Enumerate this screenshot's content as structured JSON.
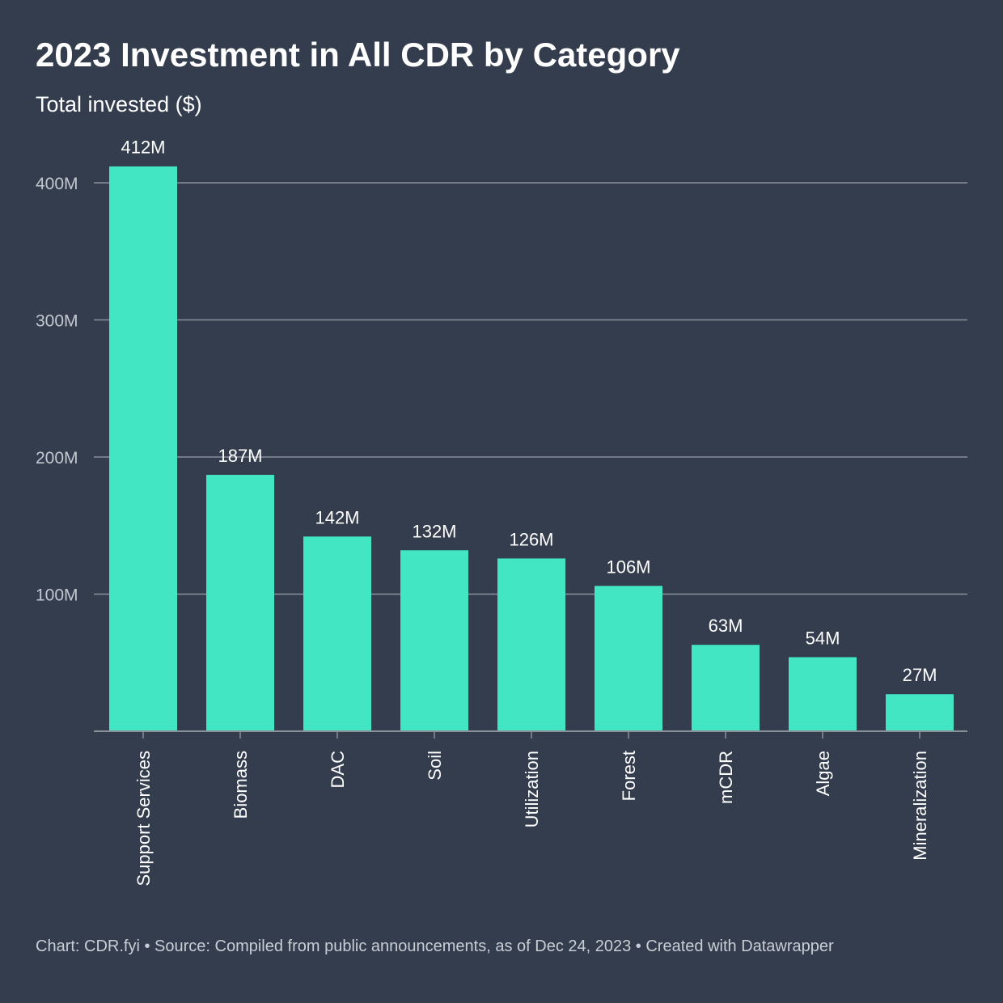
{
  "colors": {
    "background": "#333d4d",
    "bar": "#42e6c3",
    "grid": "#8a9099",
    "axis_text": "#c3c8d0",
    "text": "#ffffff"
  },
  "footer_text": "Chart: CDR.fyi • Source: Compiled from public announcements, as of Dec 24, 2023 • Created with Datawrapper",
  "chart_data": {
    "type": "bar",
    "title": "2023 Investment in All CDR by Category",
    "subtitle": "Total invested ($)",
    "xlabel": "",
    "ylabel": "Total invested ($)",
    "categories": [
      "Support Services",
      "Biomass",
      "DAC",
      "Soil",
      "Utilization",
      "Forest",
      "mCDR",
      "Algae",
      "Mineralization"
    ],
    "values": [
      412,
      187,
      142,
      132,
      126,
      106,
      63,
      54,
      27
    ],
    "value_labels": [
      "412M",
      "187M",
      "142M",
      "132M",
      "126M",
      "106M",
      "63M",
      "54M",
      "27M"
    ],
    "unit": "M",
    "ylim": [
      0,
      400
    ],
    "yticks": [
      100,
      200,
      300,
      400
    ],
    "ytick_labels": [
      "100M",
      "200M",
      "300M",
      "400M"
    ],
    "grid": true,
    "legend": "none"
  }
}
